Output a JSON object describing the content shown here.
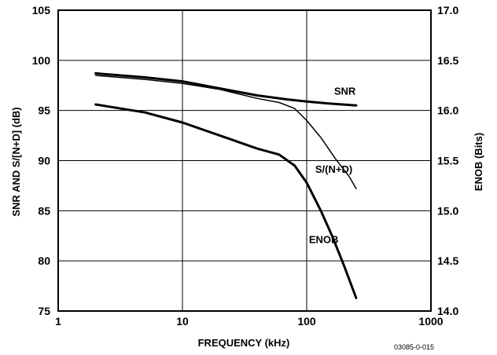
{
  "chart_data": {
    "type": "line",
    "xlabel": "FREQUENCY (kHz)",
    "ylabel": "SNR AND S/[N+D] (dB)",
    "y2label": "ENOB (Bits)",
    "xscale": "log",
    "xlim": [
      1,
      1000
    ],
    "ylim": [
      75,
      105
    ],
    "y2lim": [
      14.0,
      17.0
    ],
    "grid": true,
    "xticks": [
      "1",
      "10",
      "100",
      "1000"
    ],
    "yticks": [
      "75",
      "80",
      "85",
      "90",
      "95",
      "100",
      "105"
    ],
    "y2ticks": [
      "14.0",
      "14.5",
      "15.0",
      "15.5",
      "16.0",
      "16.5",
      "17.0"
    ],
    "figure_id": "03085-0-015",
    "series": [
      {
        "name": "SNR",
        "axis": "left",
        "stroke_width": 3,
        "points": [
          [
            2,
            98.7
          ],
          [
            5,
            98.3
          ],
          [
            10,
            97.9
          ],
          [
            20,
            97.2
          ],
          [
            40,
            96.5
          ],
          [
            70,
            96.1
          ],
          [
            100,
            95.9
          ],
          [
            150,
            95.7
          ],
          [
            250,
            95.5
          ]
        ]
      },
      {
        "name": "S/(N+D)",
        "axis": "left",
        "stroke_width": 1.5,
        "points": [
          [
            2,
            98.5
          ],
          [
            5,
            98.1
          ],
          [
            10,
            97.7
          ],
          [
            20,
            97.1
          ],
          [
            40,
            96.2
          ],
          [
            60,
            95.8
          ],
          [
            80,
            95.2
          ],
          [
            100,
            94.0
          ],
          [
            130,
            92.3
          ],
          [
            170,
            90.2
          ],
          [
            220,
            88.4
          ],
          [
            250,
            87.2
          ]
        ]
      },
      {
        "name": "ENOB",
        "axis": "right",
        "stroke_width": 3,
        "points": [
          [
            2,
            16.06
          ],
          [
            5,
            15.98
          ],
          [
            10,
            15.88
          ],
          [
            20,
            15.75
          ],
          [
            40,
            15.62
          ],
          [
            60,
            15.56
          ],
          [
            80,
            15.45
          ],
          [
            100,
            15.28
          ],
          [
            130,
            15.0
          ],
          [
            160,
            14.75
          ],
          [
            200,
            14.45
          ],
          [
            250,
            14.13
          ]
        ]
      }
    ]
  }
}
